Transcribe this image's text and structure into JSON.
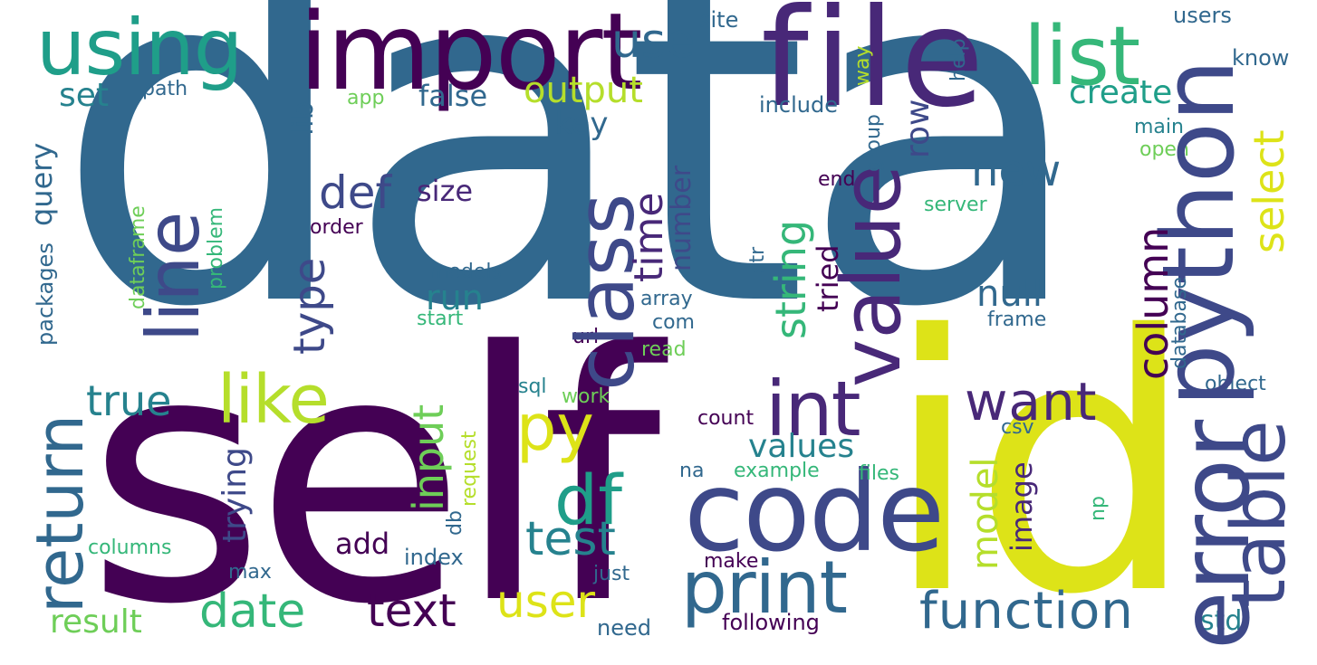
{
  "palette": {
    "dark-purple": "#440154",
    "purple": "#482878",
    "indigo": "#3e4989",
    "blue": "#31688e",
    "teal-blue": "#26828e",
    "teal": "#1f9e89",
    "green": "#35b779",
    "light-green": "#6ece58",
    "lime": "#b5de2b",
    "yellow": "#fde725"
  },
  "words": [
    {
      "text": "data",
      "color": "#31688e"
    },
    {
      "text": "self",
      "color": "#440154"
    },
    {
      "text": "id",
      "color": "#dde318"
    },
    {
      "text": "file",
      "color": "#482878"
    },
    {
      "text": "code",
      "color": "#3e4989"
    },
    {
      "text": "import",
      "color": "#440154"
    },
    {
      "text": "python",
      "color": "#3e4989"
    },
    {
      "text": "using",
      "color": "#1f9e89"
    },
    {
      "text": "error",
      "color": "#3e4989"
    },
    {
      "text": "list",
      "color": "#35b779"
    },
    {
      "text": "value",
      "color": "#482878"
    },
    {
      "text": "class",
      "color": "#3e4989"
    },
    {
      "text": "print",
      "color": "#31688e"
    },
    {
      "text": "table",
      "color": "#3e4989"
    },
    {
      "text": "int",
      "color": "#482878"
    },
    {
      "text": "like",
      "color": "#b5de2b"
    },
    {
      "text": "return",
      "color": "#31688e"
    },
    {
      "text": "line",
      "color": "#3e4989"
    },
    {
      "text": "df",
      "color": "#1f9e89"
    },
    {
      "text": "py",
      "color": "#dde318"
    },
    {
      "text": "function",
      "color": "#31688e"
    },
    {
      "text": "want",
      "color": "#482878"
    },
    {
      "text": "date",
      "color": "#35b779"
    },
    {
      "text": "text",
      "color": "#440154"
    },
    {
      "text": "user",
      "color": "#dde318"
    },
    {
      "text": "select",
      "color": "#dde318"
    },
    {
      "text": "test",
      "color": "#26828e"
    },
    {
      "text": "column",
      "color": "#440154"
    },
    {
      "text": "true",
      "color": "#26828e"
    },
    {
      "text": "new",
      "color": "#31688e"
    },
    {
      "text": "def",
      "color": "#3e4989"
    },
    {
      "text": "use",
      "color": "#31688e"
    },
    {
      "text": "string",
      "color": "#35b779"
    },
    {
      "text": "type",
      "color": "#3e4989"
    },
    {
      "text": "time",
      "color": "#482878"
    },
    {
      "text": "input",
      "color": "#6ece58"
    },
    {
      "text": "output",
      "color": "#b5de2b"
    },
    {
      "text": "null",
      "color": "#31688e"
    },
    {
      "text": "values",
      "color": "#26828e"
    },
    {
      "text": "model",
      "color": "#b5de2b"
    },
    {
      "text": "create",
      "color": "#1f9e89"
    },
    {
      "text": "trying",
      "color": "#3e4989"
    },
    {
      "text": "row",
      "color": "#3e4989"
    },
    {
      "text": "result",
      "color": "#6ece58"
    },
    {
      "text": "run",
      "color": "#26828e"
    },
    {
      "text": "set",
      "color": "#26828e"
    },
    {
      "text": "false",
      "color": "#31688e"
    },
    {
      "text": "key",
      "color": "#31688e"
    },
    {
      "text": "size",
      "color": "#482878"
    },
    {
      "text": "add",
      "color": "#440154"
    },
    {
      "text": "image",
      "color": "#482878"
    },
    {
      "text": "number",
      "color": "#3e4989"
    },
    {
      "text": "tried",
      "color": "#440154"
    },
    {
      "text": "lib",
      "color": "#31688e"
    },
    {
      "text": "query",
      "color": "#31688e"
    },
    {
      "text": "std",
      "color": "#26828e"
    },
    {
      "text": "users",
      "color": "#31688e"
    },
    {
      "text": "path",
      "color": "#31688e"
    },
    {
      "text": "app",
      "color": "#6ece58"
    },
    {
      "text": "site",
      "color": "#31688e"
    },
    {
      "text": "way",
      "color": "#b5de2b"
    },
    {
      "text": "help",
      "color": "#31688e"
    },
    {
      "text": "know",
      "color": "#31688e"
    },
    {
      "text": "include",
      "color": "#31688e"
    },
    {
      "text": "main",
      "color": "#26828e"
    },
    {
      "text": "open",
      "color": "#6ece58"
    },
    {
      "text": "group",
      "color": "#31688e"
    },
    {
      "text": "end",
      "color": "#440154"
    },
    {
      "text": "server",
      "color": "#35b779"
    },
    {
      "text": "order",
      "color": "#440154"
    },
    {
      "text": "dataframe",
      "color": "#6ece58"
    },
    {
      "text": "problem",
      "color": "#35b779"
    },
    {
      "text": "packages",
      "color": "#31688e"
    },
    {
      "text": "models",
      "color": "#31688e"
    },
    {
      "text": "start",
      "color": "#35b779"
    },
    {
      "text": "str",
      "color": "#31688e"
    },
    {
      "text": "database",
      "color": "#31688e"
    },
    {
      "text": "frame",
      "color": "#31688e"
    },
    {
      "text": "array",
      "color": "#31688e"
    },
    {
      "text": "com",
      "color": "#31688e"
    },
    {
      "text": "url",
      "color": "#440154"
    },
    {
      "text": "read",
      "color": "#6ece58"
    },
    {
      "text": "sql",
      "color": "#26828e"
    },
    {
      "text": "work",
      "color": "#6ece58"
    },
    {
      "text": "object",
      "color": "#31688e"
    },
    {
      "text": "count",
      "color": "#440154"
    },
    {
      "text": "csv",
      "color": "#31688e"
    },
    {
      "text": "na",
      "color": "#31688e"
    },
    {
      "text": "example",
      "color": "#35b779"
    },
    {
      "text": "files",
      "color": "#35b779"
    },
    {
      "text": "np",
      "color": "#35b779"
    },
    {
      "text": "request",
      "color": "#b5de2b"
    },
    {
      "text": "db",
      "color": "#31688e"
    },
    {
      "text": "columns",
      "color": "#35b779"
    },
    {
      "text": "index",
      "color": "#31688e"
    },
    {
      "text": "make",
      "color": "#440154"
    },
    {
      "text": "max",
      "color": "#31688e"
    },
    {
      "text": "just",
      "color": "#31688e"
    },
    {
      "text": "need",
      "color": "#31688e"
    },
    {
      "text": "following",
      "color": "#440154"
    }
  ]
}
